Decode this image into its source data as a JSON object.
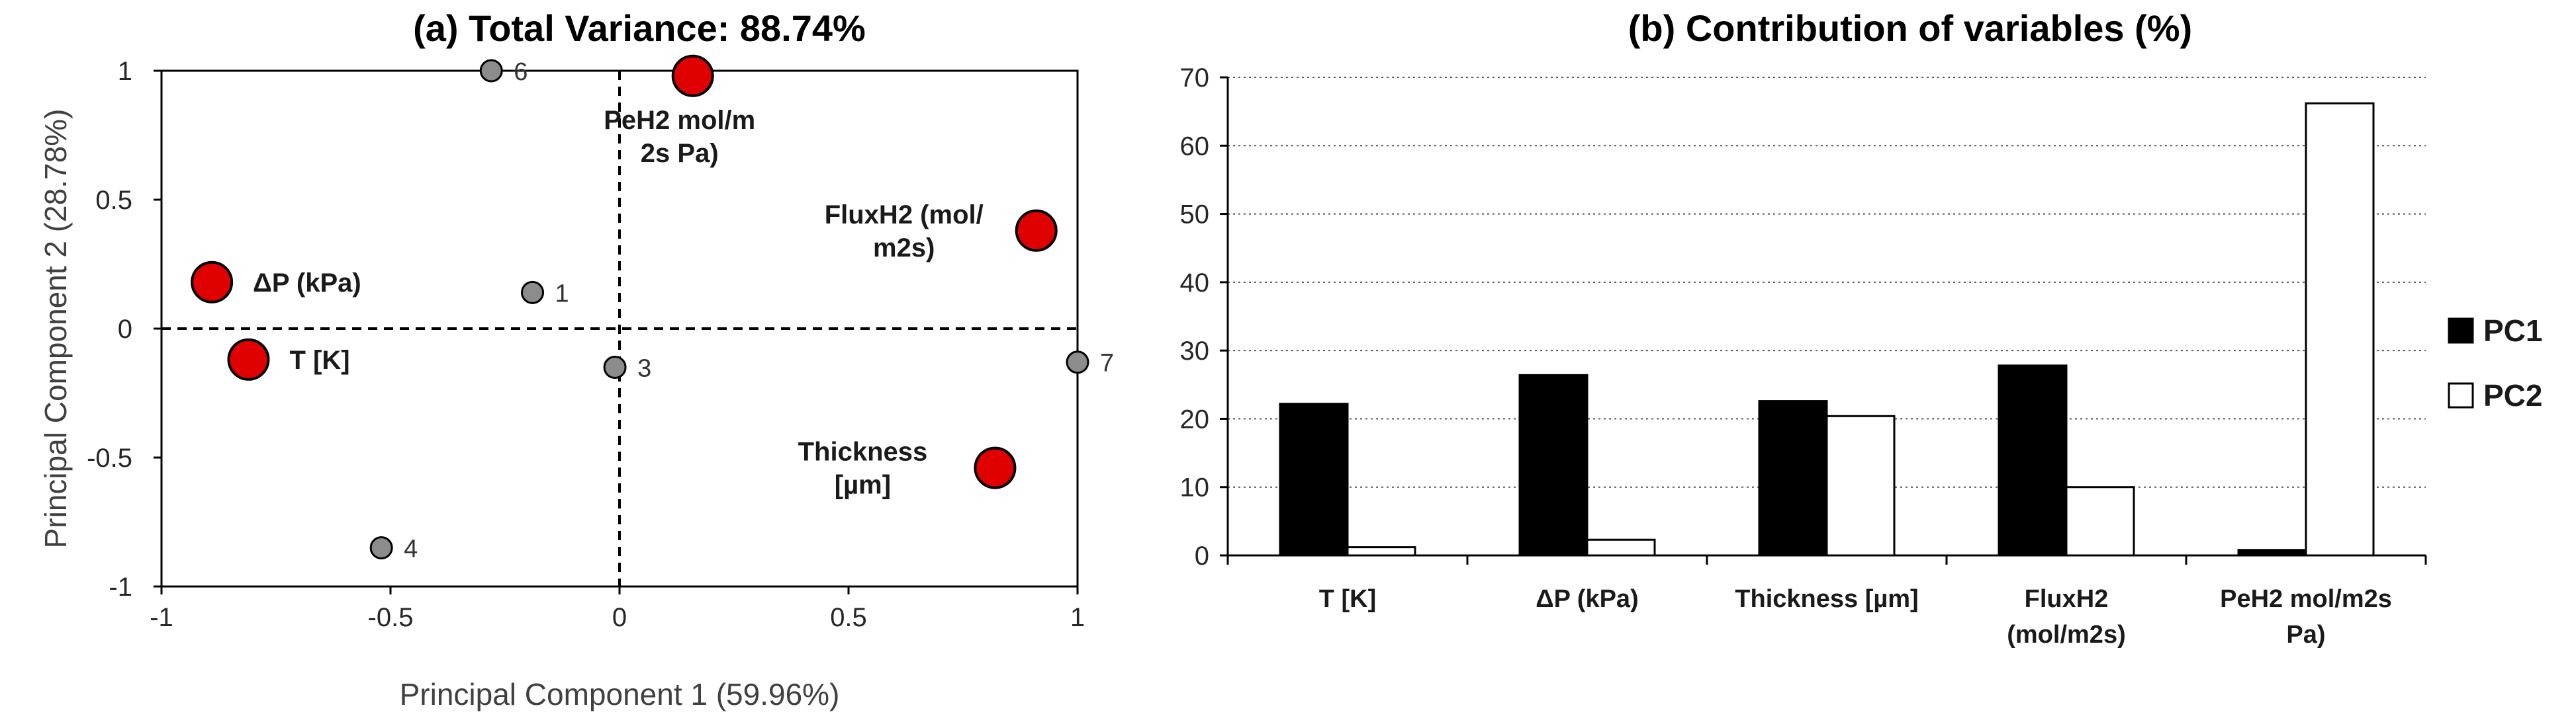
{
  "chart_data": [
    {
      "type": "scatter",
      "title": "(a) Total Variance: 88.74%",
      "xlabel": "Principal Component 1 (59.96%)",
      "ylabel": "Principal Component 2 (28.78%)",
      "xlim": [
        -1,
        1
      ],
      "ylim": [
        -1,
        1
      ],
      "xticks": [
        "-1",
        "-0.5",
        "0",
        "0.5",
        "1"
      ],
      "yticks": [
        "1",
        "0.5",
        "0",
        "-0.5",
        "-1"
      ],
      "reference_lines": "dashed at x=0 and y=0",
      "variables": [
        {
          "label": [
            "ΔP (kPa)"
          ],
          "x": -0.89,
          "y": 0.18,
          "label_side": "right"
        },
        {
          "label": [
            "T [K]"
          ],
          "x": -0.81,
          "y": -0.12,
          "label_side": "right"
        },
        {
          "label": [
            "PeH2 mol/m",
            "2s Pa)"
          ],
          "x": 0.16,
          "y": 0.98,
          "label_side": "below"
        },
        {
          "label": [
            "FluxH2 (mol/",
            "m2s)"
          ],
          "x": 0.91,
          "y": 0.38,
          "label_side": "left"
        },
        {
          "label": [
            "Thickness",
            "[µm]"
          ],
          "x": 0.82,
          "y": -0.54,
          "label_side": "left"
        }
      ],
      "observations": [
        {
          "label": "6",
          "x": -0.28,
          "y": 1.0
        },
        {
          "label": "1",
          "x": -0.19,
          "y": 0.14
        },
        {
          "label": "3",
          "x": -0.01,
          "y": -0.15
        },
        {
          "label": "7",
          "x": 1.0,
          "y": -0.13
        },
        {
          "label": "4",
          "x": -0.52,
          "y": -0.85
        }
      ],
      "colors": {
        "variable_fill": "#e00000",
        "observation_fill": "#8c8c8c"
      }
    },
    {
      "type": "bar",
      "title": "(b) Contribution of variables (%)",
      "categories": [
        [
          "T [K]"
        ],
        [
          "ΔP (kPa)"
        ],
        [
          "Thickness [µm]"
        ],
        [
          "FluxH2",
          "(mol/m2s)"
        ],
        [
          "PeH2 mol/m2s",
          "Pa)"
        ]
      ],
      "series": [
        {
          "name": "PC1",
          "values": [
            22.2,
            26.4,
            22.6,
            27.8,
            0.8
          ],
          "fill": "#000000"
        },
        {
          "name": "PC2",
          "values": [
            1.2,
            2.3,
            20.4,
            10.0,
            66.2
          ],
          "fill": "#ffffff"
        }
      ],
      "ylim": [
        0,
        70
      ],
      "yticks": [
        "0",
        "10",
        "20",
        "30",
        "40",
        "50",
        "60",
        "70"
      ],
      "grid": "horizontal dotted",
      "legend_placement": "right"
    }
  ]
}
